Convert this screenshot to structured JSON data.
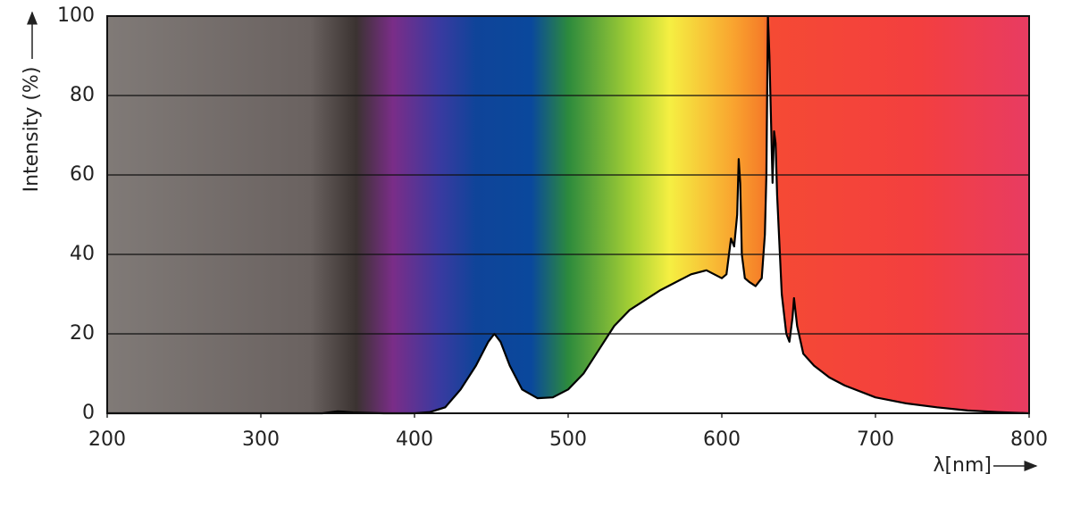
{
  "chart_data": {
    "type": "area",
    "y_label": "Intensity (%)",
    "x_label": "λ[nm]",
    "x": [
      200,
      340,
      350,
      360,
      380,
      400,
      410,
      420,
      430,
      440,
      448,
      452,
      456,
      462,
      470,
      480,
      490,
      500,
      510,
      520,
      530,
      540,
      560,
      580,
      590,
      600,
      603,
      606,
      608,
      610,
      611,
      612,
      613,
      615,
      618,
      622,
      626,
      628,
      629,
      630,
      631,
      633,
      634,
      635,
      636,
      639,
      642,
      644,
      646,
      647,
      649,
      653,
      660,
      670,
      680,
      700,
      720,
      740,
      760,
      780,
      800
    ],
    "series": [
      {
        "name": "Intensity",
        "color": "#000000",
        "values": [
          0,
          0,
          0.5,
          0.2,
          0,
          0,
          0.3,
          1.5,
          6,
          12,
          18,
          20,
          18,
          12,
          6,
          3.8,
          4,
          6,
          10,
          16,
          22,
          26,
          31,
          35,
          36,
          34,
          35,
          44,
          42,
          50,
          64,
          58,
          40,
          34,
          33,
          32,
          34,
          45,
          60,
          100,
          90,
          58,
          71,
          68,
          55,
          30,
          20,
          18,
          24,
          29,
          22,
          15,
          12,
          9,
          7,
          4,
          2.5,
          1.5,
          0.7,
          0.3,
          0
        ]
      }
    ],
    "xlim": [
      200,
      800
    ],
    "xticks": [
      200,
      300,
      400,
      500,
      600,
      700,
      800
    ],
    "ylim": [
      0,
      100
    ],
    "yticks": [
      0,
      20,
      40,
      60,
      80,
      100
    ],
    "grid": true
  }
}
